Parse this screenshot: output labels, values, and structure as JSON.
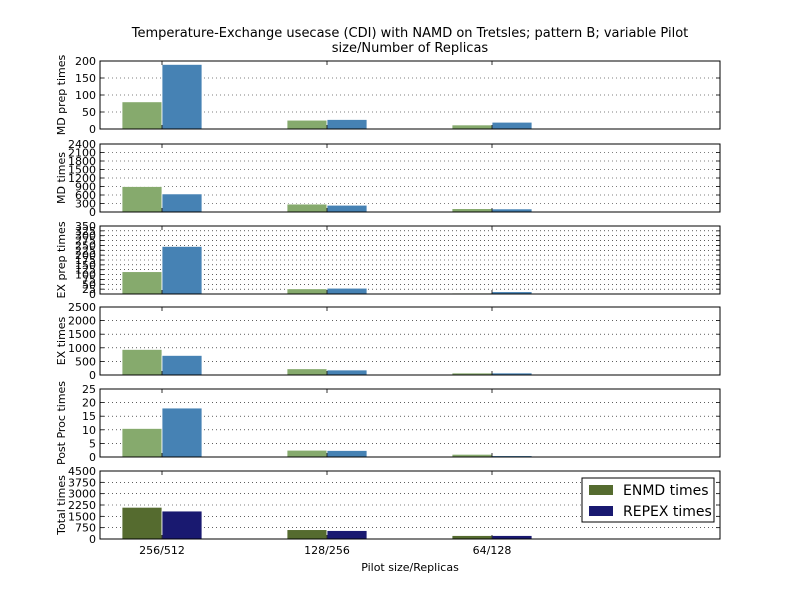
{
  "title_lines": [
    "Temperature-Exchange usecase (CDI) with NAMD on Tretsles; pattern B; variable Pilot",
    "size/Number of Replicas"
  ],
  "xlabel": "Pilot size/Replicas",
  "chart_data": [
    {
      "type": "bar",
      "categories": [
        "256/512",
        "128/256",
        "64/128"
      ],
      "ylabel": "MD prep times",
      "ylim": [
        0,
        200
      ],
      "yticks": [
        0,
        50,
        100,
        150,
        200
      ],
      "grid": true,
      "series": [
        {
          "name": "ENMD times",
          "values": [
            80,
            26,
            12
          ],
          "color": "#86aa6d"
        },
        {
          "name": "REPEX times",
          "values": [
            190,
            28,
            20
          ],
          "color": "#4682b4"
        }
      ]
    },
    {
      "type": "bar",
      "categories": [
        "256/512",
        "128/256",
        "64/128"
      ],
      "ylabel": "MD times",
      "ylim": [
        0,
        2400
      ],
      "yticks": [
        0,
        300,
        600,
        900,
        1200,
        1500,
        1800,
        2100,
        2400
      ],
      "grid": true,
      "series": [
        {
          "name": "ENMD times",
          "values": [
            900,
            280,
            120
          ],
          "color": "#86aa6d"
        },
        {
          "name": "REPEX times",
          "values": [
            640,
            240,
            110
          ],
          "color": "#4682b4"
        }
      ]
    },
    {
      "type": "bar",
      "categories": [
        "256/512",
        "128/256",
        "64/128"
      ],
      "ylabel": "EX prep times",
      "ylim": [
        0,
        350
      ],
      "yticks": [
        0,
        25,
        50,
        75,
        100,
        125,
        150,
        175,
        200,
        225,
        250,
        275,
        300,
        325,
        350
      ],
      "grid": true,
      "series": [
        {
          "name": "ENMD times",
          "values": [
            115,
            27,
            5
          ],
          "color": "#86aa6d"
        },
        {
          "name": "REPEX times",
          "values": [
            245,
            30,
            12
          ],
          "color": "#4682b4"
        }
      ]
    },
    {
      "type": "bar",
      "categories": [
        "256/512",
        "128/256",
        "64/128"
      ],
      "ylabel": "EX times",
      "ylim": [
        0,
        2500
      ],
      "yticks": [
        0,
        500,
        1000,
        1500,
        2000,
        2500
      ],
      "grid": true,
      "series": [
        {
          "name": "ENMD times",
          "values": [
            940,
            230,
            75
          ],
          "color": "#86aa6d"
        },
        {
          "name": "REPEX times",
          "values": [
            720,
            185,
            75
          ],
          "color": "#4682b4"
        }
      ]
    },
    {
      "type": "bar",
      "categories": [
        "256/512",
        "128/256",
        "64/128"
      ],
      "ylabel": "Post Proc times",
      "ylim": [
        0,
        25
      ],
      "yticks": [
        0,
        5,
        10,
        15,
        20,
        25
      ],
      "grid": true,
      "series": [
        {
          "name": "ENMD times",
          "values": [
            10.5,
            2.5,
            1
          ],
          "color": "#86aa6d"
        },
        {
          "name": "REPEX times",
          "values": [
            18,
            2.4,
            0.5
          ],
          "color": "#4682b4"
        }
      ]
    },
    {
      "type": "bar",
      "categories": [
        "256/512",
        "128/256",
        "64/128"
      ],
      "ylabel": "Total times",
      "ylim": [
        0,
        4500
      ],
      "yticks": [
        0,
        750,
        1500,
        2250,
        3000,
        3750,
        4500
      ],
      "grid": true,
      "legend": "top-right",
      "series": [
        {
          "name": "ENMD times",
          "values": [
            2100,
            620,
            230
          ],
          "color": "#556b2f"
        },
        {
          "name": "REPEX times",
          "values": [
            1850,
            560,
            230
          ],
          "color": "#191970"
        }
      ]
    }
  ]
}
